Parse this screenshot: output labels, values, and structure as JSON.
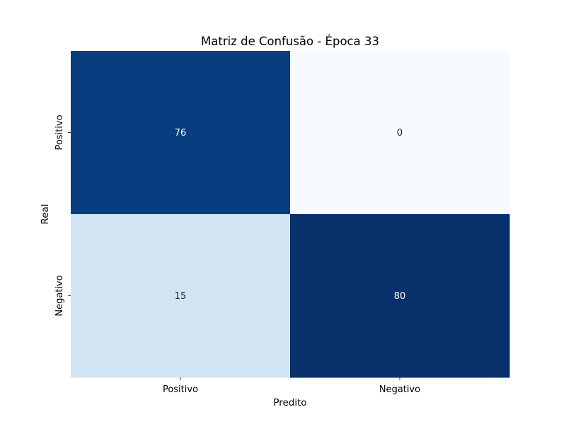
{
  "chart_data": {
    "type": "heatmap",
    "title": "Matriz de Confusão - Época 33",
    "xlabel": "Predito",
    "ylabel": "Real",
    "x_categories": [
      "Positivo",
      "Negativo"
    ],
    "y_categories": [
      "Positivo",
      "Negativo"
    ],
    "values": [
      [
        76,
        0
      ],
      [
        15,
        80
      ]
    ],
    "colormap": "Blues",
    "color_range": [
      0,
      80
    ],
    "colorbar": false,
    "grid": false
  }
}
